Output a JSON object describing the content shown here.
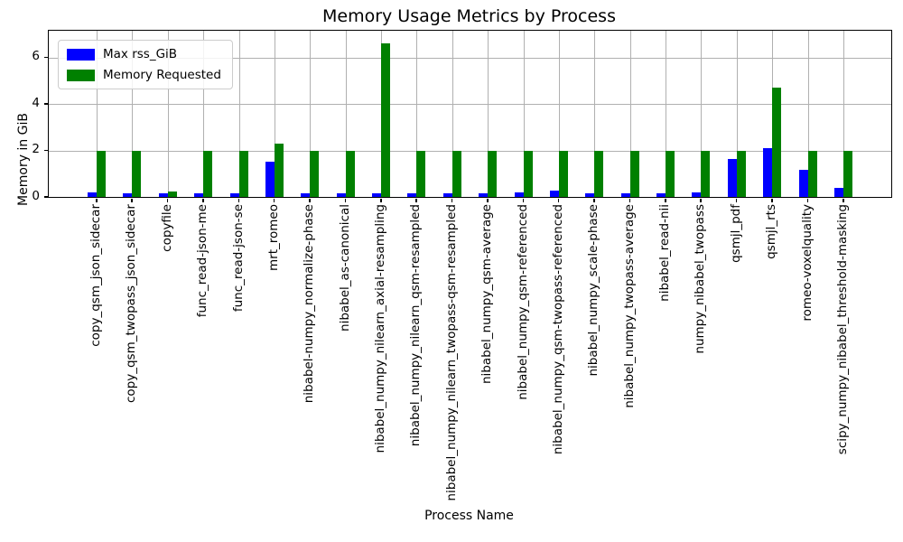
{
  "chart_data": {
    "type": "bar",
    "title": "Memory Usage Metrics by Process",
    "xlabel": "Process Name",
    "ylabel": "Memory in GiB",
    "ylim": [
      0,
      7.15
    ],
    "yticks": [
      0,
      2,
      4,
      6
    ],
    "grid": true,
    "legend_position": "upper-left",
    "categories": [
      "copy_qsm_json_sidecar",
      "copy_qsm_twopass_json_sidecar",
      "copyfile",
      "func_read-json-me",
      "func_read-json-se",
      "mrt_romeo",
      "nibabel-numpy_normalize-phase",
      "nibabel_as-canonical",
      "nibabel_numpy_nilearn_axial-resampling",
      "nibabel_numpy_nilearn_qsm-resampled",
      "nibabel_numpy_nilearn_twopass-qsm-resampled",
      "nibabel_numpy_qsm-average",
      "nibabel_numpy_qsm-referenced",
      "nibabel_numpy_qsm-twopass-referenced",
      "nibabel_numpy_scale-phase",
      "nibabel_numpy_twopass-average",
      "nibabel_read-nii",
      "numpy_nibabel_twopass",
      "qsmjl_pdf",
      "qsmjl_rts",
      "romeo-voxelquality",
      "scipy_numpy_nibabel_threshold-masking"
    ],
    "series": [
      {
        "name": "Max rss_GiB",
        "color": "#0000ff",
        "values": [
          0.2,
          0.17,
          0.16,
          0.16,
          0.16,
          1.52,
          0.16,
          0.15,
          0.16,
          0.17,
          0.15,
          0.16,
          0.2,
          0.29,
          0.16,
          0.16,
          0.17,
          0.21,
          1.65,
          2.1,
          1.15,
          0.38
        ]
      },
      {
        "name": "Memory Requested",
        "color": "#008000",
        "values": [
          2.0,
          2.0,
          0.24,
          2.0,
          2.0,
          2.28,
          2.0,
          2.0,
          6.6,
          2.0,
          2.0,
          2.0,
          2.0,
          2.0,
          2.0,
          2.0,
          2.0,
          2.0,
          2.0,
          4.7,
          2.0,
          2.0
        ]
      }
    ],
    "grid_color": "#b0b0b0",
    "text_color": "#000000"
  }
}
